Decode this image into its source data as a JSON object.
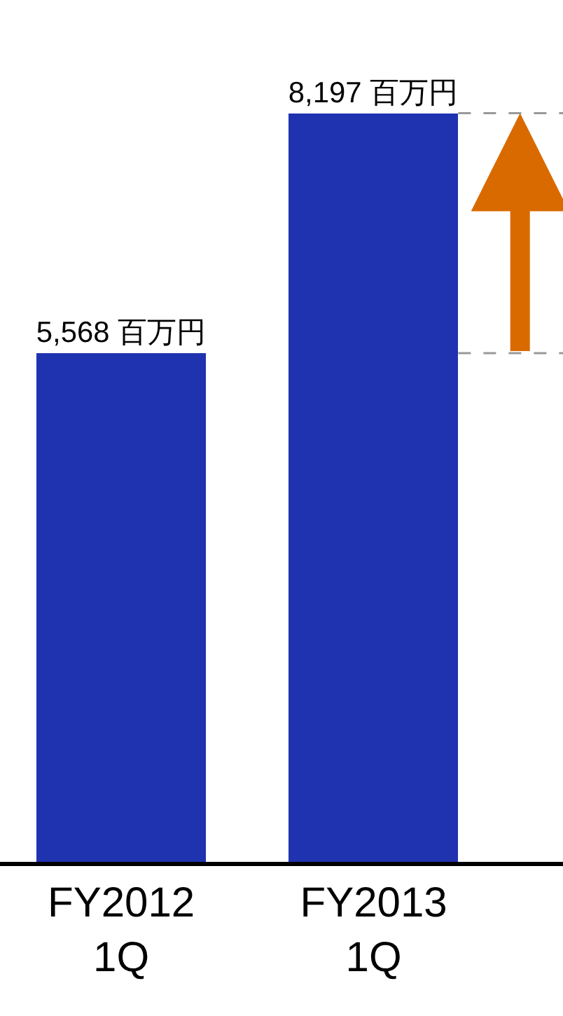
{
  "chart_data": {
    "type": "bar",
    "categories": [
      "FY2012\n1Q",
      "FY2013\n1Q"
    ],
    "values": [
      5568,
      8197
    ],
    "colors": [
      "#1f33b0",
      "#1f33b0"
    ],
    "value_labels": [
      "5,568 百万円",
      "8,197 百万円"
    ],
    "ref_lines": [
      {
        "axis": "y",
        "value": 5568,
        "color": "#999999",
        "line_style": "dashed"
      },
      {
        "axis": "y",
        "value": 8197,
        "color": "#999999",
        "line_style": "dashed"
      }
    ],
    "legend": false
  }
}
